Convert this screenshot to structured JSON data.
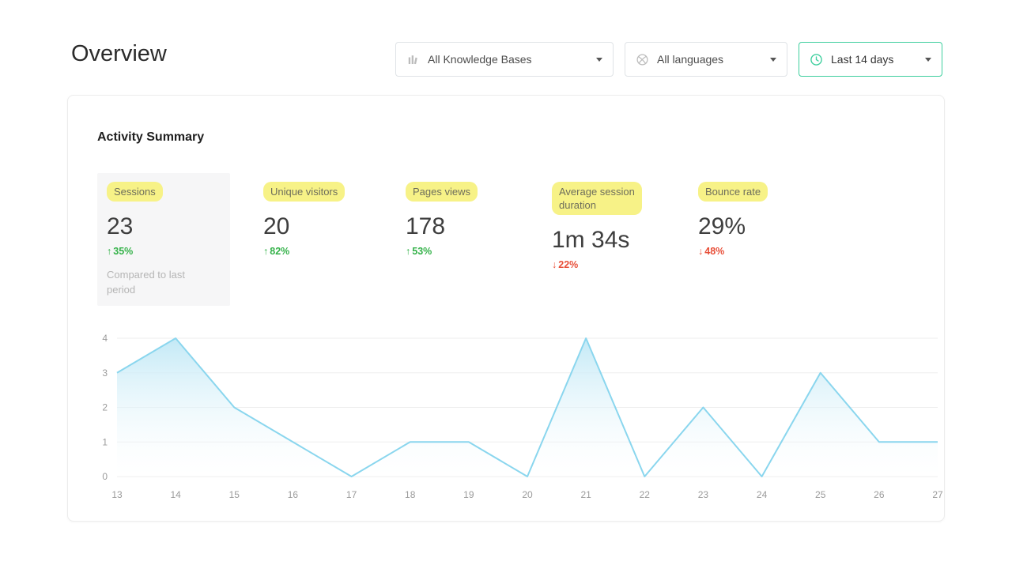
{
  "page": {
    "title": "Overview"
  },
  "filters": {
    "knowledge_bases": {
      "label": "All Knowledge Bases",
      "icon": "knowledge-base-icon"
    },
    "languages": {
      "label": "All languages",
      "icon": "globe-icon"
    },
    "date_range": {
      "label": "Last 14 days",
      "icon": "clock-icon"
    }
  },
  "activity": {
    "title": "Activity Summary",
    "metrics": [
      {
        "label": "Sessions",
        "value": "23",
        "change": "35%",
        "direction": "up",
        "note": "Compared to last period",
        "selected": true
      },
      {
        "label": "Unique visitors",
        "value": "20",
        "change": "82%",
        "direction": "up"
      },
      {
        "label": "Pages views",
        "value": "178",
        "change": "53%",
        "direction": "up"
      },
      {
        "label": "Average session duration",
        "value": "1m 34s",
        "change": "22%",
        "direction": "down"
      },
      {
        "label": "Bounce rate",
        "value": "29%",
        "change": "48%",
        "direction": "down"
      }
    ]
  },
  "chart_data": {
    "type": "area",
    "title": "",
    "xlabel": "",
    "ylabel": "",
    "x": [
      13,
      14,
      15,
      16,
      17,
      18,
      19,
      20,
      21,
      22,
      23,
      24,
      25,
      26,
      27
    ],
    "values": [
      3,
      4,
      2,
      1,
      0,
      1,
      1,
      0,
      4,
      0,
      2,
      0,
      3,
      1,
      1
    ],
    "ylim": [
      0,
      4
    ],
    "yticks": [
      0,
      1,
      2,
      3,
      4
    ],
    "grid": true,
    "legend": "none",
    "line_color": "#8ad6ee",
    "fill_top": "#c3e9f6",
    "fill_bottom": "#ffffff"
  },
  "colors": {
    "highlight": "#f7f287",
    "positive": "#35b24a",
    "negative": "#e8503a",
    "accent": "#3ecf9e"
  }
}
